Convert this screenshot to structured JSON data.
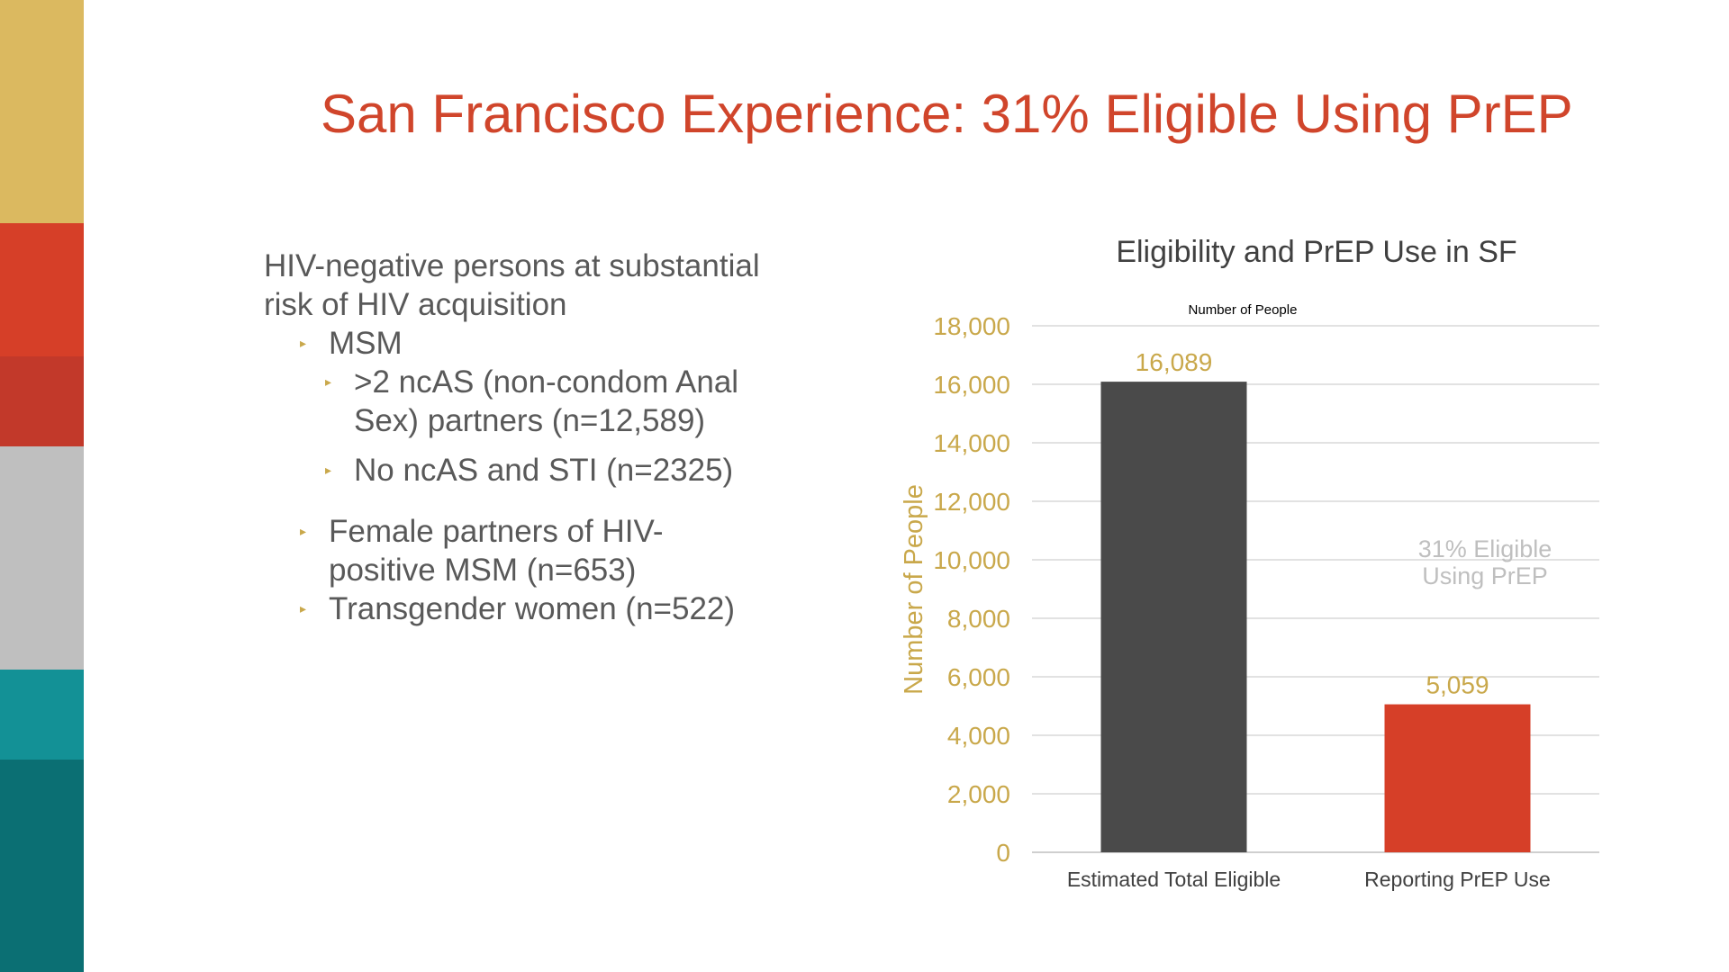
{
  "slide": {
    "title": "San Francisco Experience: 31% Eligible Using PrEP",
    "title_color": "#d0452b",
    "strip_colors": [
      "#dbb960",
      "#d63f28",
      "#c2392a",
      "#bfbfbf",
      "#139196",
      "#0b6f73"
    ]
  },
  "body": {
    "intro_line1": "HIV-negative persons at substantial",
    "intro_line2": "risk of HIV acquisition",
    "bullet_glyph": "▸",
    "items": [
      {
        "text": "MSM"
      },
      {
        "text_line1": ">2 ncAS (non-condom Anal",
        "text_line2": "Sex) partners (n=12,589)"
      },
      {
        "text": "No ncAS and STI (n=2325)"
      },
      {
        "text_line1": "Female partners of HIV-",
        "text_line2": "positive MSM (n=653)"
      },
      {
        "text": "Transgender women (n=522)"
      }
    ]
  },
  "chart_data": {
    "type": "bar",
    "title": "Eligibility and PrEP Use in SF",
    "subtitle": "Number of People",
    "ylabel": "Number of People",
    "xlabel": "",
    "categories": [
      "Estimated Total Eligible",
      "Reporting PrEP Use"
    ],
    "values": [
      16089,
      5059
    ],
    "data_labels": [
      "16,089",
      "5,059"
    ],
    "bar_colors": [
      "#4a4a4a",
      "#d63f28"
    ],
    "ylim": [
      0,
      18000
    ],
    "yticks": [
      0,
      2000,
      4000,
      6000,
      8000,
      10000,
      12000,
      14000,
      16000,
      18000
    ],
    "ytick_labels": [
      "0",
      "2,000",
      "4,000",
      "6,000",
      "8,000",
      "10,000",
      "12,000",
      "14,000",
      "16,000",
      "18,000"
    ],
    "grid": true,
    "annotation_line1": "31% Eligible",
    "annotation_line2": "Using PrEP",
    "axis_text_color": "#c9a84b",
    "annotation_color": "#bfbfbf"
  }
}
